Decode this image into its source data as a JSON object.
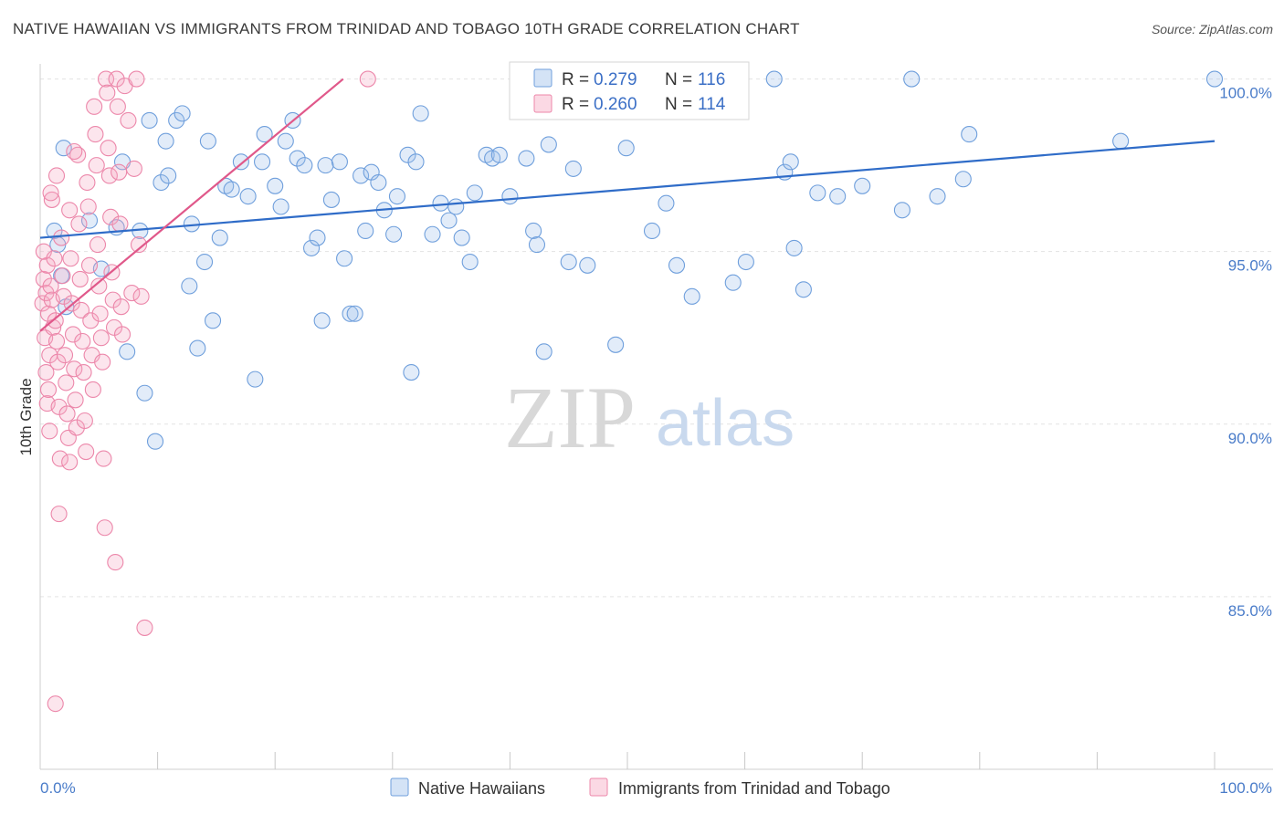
{
  "title": "NATIVE HAWAIIAN VS IMMIGRANTS FROM TRINIDAD AND TOBAGO 10TH GRADE CORRELATION CHART",
  "source": "Source: ZipAtlas.com",
  "watermark": {
    "zip": "ZIP",
    "atlas": "atlas"
  },
  "stats": {
    "r_label": "R =",
    "n_label": "N =",
    "blue": {
      "r": "0.279",
      "n": "116"
    },
    "pink": {
      "r": "0.260",
      "n": "114"
    }
  },
  "legend": {
    "blue": "Native Hawaiians",
    "pink": "Immigrants from Trinidad and Tobago"
  },
  "colors": {
    "blue_fill": "rgba(160,192,236,0.30)",
    "blue_stroke": "#6f9fdc",
    "blue_line": "#2f6cc8",
    "pink_fill": "rgba(246,170,196,0.30)",
    "pink_stroke": "#ec87aa",
    "pink_line": "#e0588a",
    "tick_text": "#4a7cc9",
    "grid": "#e3e3e3"
  },
  "chart_data": {
    "type": "scatter",
    "title": "NATIVE HAWAIIAN VS IMMIGRANTS FROM TRINIDAD AND TOBAGO 10TH GRADE CORRELATION CHART",
    "xlabel": "",
    "ylabel": "10th Grade",
    "xlim": [
      0,
      100
    ],
    "ylim": [
      80.0,
      100.2
    ],
    "x_tick_labels": [
      "0.0%",
      "100.0%"
    ],
    "y_ticks": [
      85,
      90,
      95,
      100
    ],
    "y_tick_labels": [
      "85.0%",
      "90.0%",
      "95.0%",
      "100.0%"
    ],
    "grid": "horizontal dashed",
    "legend_position": "bottom-center",
    "series": [
      {
        "name": "Native Hawaiians",
        "color": "#6f9fdc",
        "r": 0.279,
        "n": 116,
        "trend": {
          "x": [
            0,
            100
          ],
          "y": [
            95.4,
            98.2
          ]
        },
        "points": [
          [
            1.2,
            95.6
          ],
          [
            1.5,
            95.2
          ],
          [
            1.8,
            94.3
          ],
          [
            2.0,
            98.0
          ],
          [
            2.2,
            93.4
          ],
          [
            4.2,
            95.9
          ],
          [
            5.2,
            94.5
          ],
          [
            6.5,
            95.7
          ],
          [
            7.0,
            97.6
          ],
          [
            7.4,
            92.1
          ],
          [
            8.5,
            95.6
          ],
          [
            8.9,
            90.9
          ],
          [
            9.3,
            98.8
          ],
          [
            9.8,
            89.5
          ],
          [
            10.3,
            97.0
          ],
          [
            10.7,
            98.2
          ],
          [
            10.9,
            97.2
          ],
          [
            11.6,
            98.8
          ],
          [
            12.1,
            99.0
          ],
          [
            12.7,
            94.0
          ],
          [
            12.9,
            95.8
          ],
          [
            13.4,
            92.2
          ],
          [
            14.0,
            94.7
          ],
          [
            14.3,
            98.2
          ],
          [
            14.7,
            93.0
          ],
          [
            15.3,
            95.4
          ],
          [
            15.8,
            96.9
          ],
          [
            16.3,
            96.8
          ],
          [
            17.1,
            97.6
          ],
          [
            17.7,
            96.6
          ],
          [
            18.3,
            91.3
          ],
          [
            18.9,
            97.6
          ],
          [
            19.1,
            98.4
          ],
          [
            20.0,
            96.9
          ],
          [
            20.5,
            96.3
          ],
          [
            20.9,
            98.2
          ],
          [
            21.5,
            98.8
          ],
          [
            21.9,
            97.7
          ],
          [
            22.5,
            97.5
          ],
          [
            23.1,
            95.1
          ],
          [
            23.6,
            95.4
          ],
          [
            24.0,
            93.0
          ],
          [
            24.3,
            97.5
          ],
          [
            24.8,
            96.5
          ],
          [
            25.5,
            97.6
          ],
          [
            25.9,
            94.8
          ],
          [
            26.4,
            93.2
          ],
          [
            26.8,
            93.2
          ],
          [
            27.3,
            97.2
          ],
          [
            27.7,
            95.6
          ],
          [
            28.2,
            97.3
          ],
          [
            28.8,
            97.0
          ],
          [
            29.3,
            96.2
          ],
          [
            30.1,
            95.5
          ],
          [
            30.4,
            96.6
          ],
          [
            31.3,
            97.8
          ],
          [
            31.6,
            91.5
          ],
          [
            32.0,
            97.6
          ],
          [
            32.4,
            99.0
          ],
          [
            33.4,
            95.5
          ],
          [
            34.1,
            96.4
          ],
          [
            34.8,
            95.9
          ],
          [
            35.4,
            96.3
          ],
          [
            35.9,
            95.4
          ],
          [
            36.6,
            94.7
          ],
          [
            37.0,
            96.7
          ],
          [
            38.0,
            97.8
          ],
          [
            38.5,
            97.7
          ],
          [
            39.1,
            97.8
          ],
          [
            40.0,
            96.6
          ],
          [
            41.4,
            97.7
          ],
          [
            42.0,
            95.6
          ],
          [
            42.3,
            95.2
          ],
          [
            42.9,
            92.1
          ],
          [
            43.3,
            98.1
          ],
          [
            45.0,
            94.7
          ],
          [
            45.4,
            97.4
          ],
          [
            46.6,
            94.6
          ],
          [
            49.0,
            92.3
          ],
          [
            49.9,
            98.0
          ],
          [
            52.1,
            95.6
          ],
          [
            53.3,
            96.4
          ],
          [
            54.2,
            94.6
          ],
          [
            55.5,
            93.7
          ],
          [
            57.0,
            99.5
          ],
          [
            58.2,
            100.0
          ],
          [
            59.0,
            94.1
          ],
          [
            60.1,
            94.7
          ],
          [
            62.5,
            100.0
          ],
          [
            63.4,
            97.3
          ],
          [
            63.9,
            97.6
          ],
          [
            64.2,
            95.1
          ],
          [
            65.0,
            93.9
          ],
          [
            66.2,
            96.7
          ],
          [
            67.9,
            96.6
          ],
          [
            70.0,
            96.9
          ],
          [
            73.4,
            96.2
          ],
          [
            74.2,
            100.0
          ],
          [
            76.4,
            96.6
          ],
          [
            78.6,
            97.1
          ],
          [
            79.1,
            98.4
          ],
          [
            92.0,
            98.2
          ],
          [
            100.0,
            100.0
          ]
        ]
      },
      {
        "name": "Immigrants from Trinidad and Tobago",
        "color": "#ec87aa",
        "r": 0.26,
        "n": 114,
        "trend": {
          "x": [
            0,
            25.8
          ],
          "y": [
            92.7,
            100.0
          ]
        },
        "points": [
          [
            0.2,
            93.5
          ],
          [
            0.3,
            94.2
          ],
          [
            0.4,
            92.5
          ],
          [
            0.5,
            93.8
          ],
          [
            0.6,
            94.6
          ],
          [
            0.7,
            93.2
          ],
          [
            0.8,
            92.0
          ],
          [
            0.9,
            94.0
          ],
          [
            1.0,
            93.6
          ],
          [
            1.1,
            92.8
          ],
          [
            0.3,
            95.0
          ],
          [
            0.5,
            91.5
          ],
          [
            0.6,
            90.6
          ],
          [
            0.8,
            89.8
          ],
          [
            0.7,
            91.0
          ],
          [
            1.0,
            96.5
          ],
          [
            1.2,
            94.8
          ],
          [
            1.3,
            93.0
          ],
          [
            1.4,
            92.4
          ],
          [
            1.5,
            91.8
          ],
          [
            1.6,
            90.5
          ],
          [
            1.7,
            89.0
          ],
          [
            1.8,
            95.4
          ],
          [
            1.9,
            94.3
          ],
          [
            2.0,
            93.7
          ],
          [
            2.1,
            92.0
          ],
          [
            2.2,
            91.2
          ],
          [
            2.3,
            90.3
          ],
          [
            2.4,
            89.6
          ],
          [
            2.5,
            96.2
          ],
          [
            2.6,
            94.8
          ],
          [
            2.7,
            93.5
          ],
          [
            2.8,
            92.6
          ],
          [
            2.9,
            91.6
          ],
          [
            3.0,
            90.7
          ],
          [
            3.1,
            89.9
          ],
          [
            3.2,
            97.8
          ],
          [
            3.3,
            95.8
          ],
          [
            3.4,
            94.2
          ],
          [
            3.5,
            93.3
          ],
          [
            3.6,
            92.4
          ],
          [
            3.7,
            91.5
          ],
          [
            3.8,
            90.1
          ],
          [
            3.9,
            89.2
          ],
          [
            4.0,
            97.0
          ],
          [
            4.1,
            96.3
          ],
          [
            4.2,
            94.6
          ],
          [
            4.3,
            93.0
          ],
          [
            4.4,
            92.0
          ],
          [
            4.5,
            91.0
          ],
          [
            4.6,
            99.2
          ],
          [
            4.7,
            98.4
          ],
          [
            4.8,
            97.5
          ],
          [
            4.9,
            95.2
          ],
          [
            5.0,
            94.0
          ],
          [
            5.1,
            93.2
          ],
          [
            5.2,
            92.5
          ],
          [
            5.3,
            91.8
          ],
          [
            5.4,
            89.0
          ],
          [
            5.5,
            87.0
          ],
          [
            5.6,
            100.0
          ],
          [
            5.7,
            99.6
          ],
          [
            5.8,
            98.0
          ],
          [
            5.9,
            97.2
          ],
          [
            6.0,
            96.0
          ],
          [
            6.1,
            94.4
          ],
          [
            6.2,
            93.6
          ],
          [
            6.3,
            92.8
          ],
          [
            6.4,
            86.0
          ],
          [
            6.5,
            100.0
          ],
          [
            6.6,
            99.2
          ],
          [
            6.7,
            97.3
          ],
          [
            6.8,
            95.8
          ],
          [
            6.9,
            93.4
          ],
          [
            7.0,
            92.6
          ],
          [
            7.2,
            99.8
          ],
          [
            7.5,
            98.8
          ],
          [
            7.8,
            93.8
          ],
          [
            8.0,
            97.4
          ],
          [
            8.2,
            100.0
          ],
          [
            8.4,
            95.2
          ],
          [
            8.6,
            93.7
          ],
          [
            8.9,
            84.1
          ],
          [
            1.3,
            81.9
          ],
          [
            1.6,
            87.4
          ],
          [
            2.5,
            88.9
          ],
          [
            0.9,
            96.7
          ],
          [
            1.4,
            97.2
          ],
          [
            2.9,
            97.9
          ],
          [
            27.9,
            100.0
          ]
        ]
      }
    ]
  }
}
